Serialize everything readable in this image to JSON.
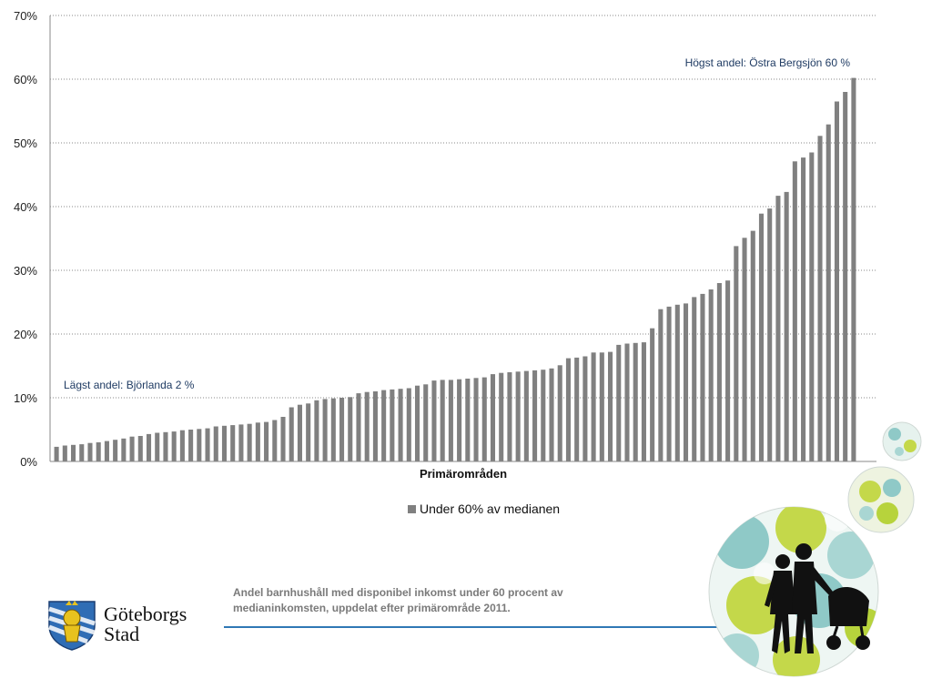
{
  "chart_data": {
    "type": "bar",
    "xlabel": "Primärområden",
    "ylim": [
      0,
      70
    ],
    "yticks": [
      "0%",
      "10%",
      "20%",
      "30%",
      "40%",
      "50%",
      "60%",
      "70%"
    ],
    "grid": true,
    "legend_position": "bottom",
    "series": [
      {
        "name": "Under 60% av medianen",
        "color": "#808080",
        "values": [
          2.3,
          2.5,
          2.6,
          2.7,
          2.9,
          3.0,
          3.2,
          3.4,
          3.6,
          3.9,
          4.0,
          4.3,
          4.5,
          4.6,
          4.7,
          4.9,
          5.0,
          5.1,
          5.2,
          5.5,
          5.6,
          5.7,
          5.8,
          5.9,
          6.1,
          6.2,
          6.5,
          7.0,
          8.5,
          8.9,
          9.1,
          9.6,
          9.8,
          9.9,
          10.0,
          10.1,
          10.7,
          10.9,
          11.0,
          11.2,
          11.3,
          11.4,
          11.5,
          11.9,
          12.1,
          12.7,
          12.8,
          12.8,
          12.9,
          13.0,
          13.1,
          13.2,
          13.7,
          13.9,
          14.0,
          14.1,
          14.2,
          14.3,
          14.4,
          14.6,
          15.1,
          16.2,
          16.3,
          16.5,
          17.1,
          17.1,
          17.2,
          18.3,
          18.5,
          18.6,
          18.7,
          20.9,
          23.9,
          24.3,
          24.6,
          24.8,
          25.8,
          26.3,
          27.0,
          28.0,
          28.4,
          33.8,
          35.1,
          36.2,
          38.9,
          39.7,
          41.7,
          42.3,
          47.1,
          47.7,
          48.5,
          51.1,
          52.9,
          56.5,
          58.0,
          60.2
        ]
      }
    ],
    "annotations": {
      "highest": "Högst andel: Östra Bergsjön 60 %",
      "lowest": "Lägst andel: Björlanda 2 %"
    }
  },
  "caption": "Andel barnhushåll med disponibel inkomst under 60 procent av medianinkomsten, uppdelat efter primärområde 2011.",
  "logo": {
    "line1": "Göteborgs",
    "line2": "Stad"
  }
}
